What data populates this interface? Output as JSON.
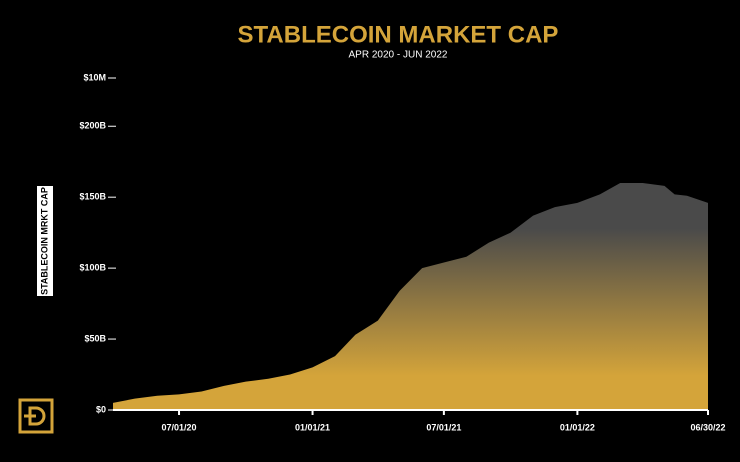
{
  "chart_data": {
    "type": "area",
    "title": "STABLECOIN MARKET CAP",
    "subtitle": "APR 2020 - JUN 2022",
    "y_label": "STABLECOIN MRKT CAP",
    "color_top": "#4a4a4a",
    "color_bottom": "#d4a43a",
    "x": [
      "2020-04-01",
      "2020-05-01",
      "2020-06-01",
      "2020-07-01",
      "2020-08-01",
      "2020-09-01",
      "2020-10-01",
      "2020-11-01",
      "2020-12-01",
      "2021-01-01",
      "2021-02-01",
      "2021-03-01",
      "2021-04-01",
      "2021-05-01",
      "2021-06-01",
      "2021-07-01",
      "2021-08-01",
      "2021-09-01",
      "2021-10-01",
      "2021-11-01",
      "2021-12-01",
      "2022-01-01",
      "2022-02-01",
      "2022-03-01",
      "2022-04-01",
      "2022-05-01",
      "2022-05-15",
      "2022-06-01",
      "2022-06-30"
    ],
    "values": [
      5,
      8,
      10,
      11,
      13,
      17,
      20,
      22,
      25,
      30,
      38,
      53,
      63,
      84,
      100,
      104,
      108,
      118,
      125,
      137,
      143,
      146,
      152,
      160,
      160,
      158,
      152,
      151,
      146
    ],
    "xlim": [
      "2020-04-01",
      "2022-06-30"
    ],
    "xticks": [
      {
        "value": "2020-07-01",
        "label": "07/01/20"
      },
      {
        "value": "2021-01-01",
        "label": "01/01/21"
      },
      {
        "value": "2021-07-01",
        "label": "07/01/21"
      },
      {
        "value": "2022-01-01",
        "label": "01/01/22"
      },
      {
        "value": "2022-06-30",
        "label": "06/30/22"
      }
    ],
    "ylim": [
      0,
      234
    ],
    "ylim_label": "$10M",
    "yticks": [
      {
        "value": 0,
        "label": "$0"
      },
      {
        "value": 50,
        "label": "$50B"
      },
      {
        "value": 100,
        "label": "$100B"
      },
      {
        "value": 150,
        "label": "$150B"
      },
      {
        "value": 200,
        "label": "$200B"
      }
    ]
  }
}
